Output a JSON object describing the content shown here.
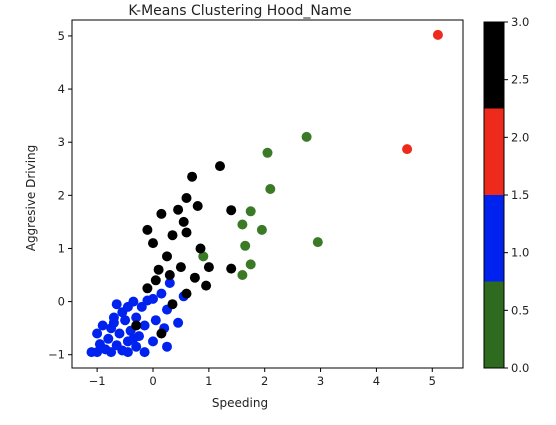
{
  "chart_data": {
    "type": "scatter",
    "title": "K-Means Clustering Hood_Name",
    "xlabel": "Speeding",
    "ylabel": "Aggresive Driving",
    "xlim": [
      -1.45,
      5.55
    ],
    "ylim": [
      -1.25,
      5.3
    ],
    "xticks": [
      -1,
      0,
      1,
      2,
      3,
      4,
      5
    ],
    "yticks": [
      -1,
      0,
      1,
      2,
      3,
      4,
      5
    ],
    "grid": false,
    "colorbar": {
      "min": 0.0,
      "max": 3.0,
      "ticks": [
        "0.0",
        "0.5",
        "1.0",
        "1.5",
        "2.0",
        "2.5",
        "3.0"
      ],
      "bands": [
        {
          "from": 0.0,
          "to": 0.75,
          "color": "#2e6b1e"
        },
        {
          "from": 0.75,
          "to": 1.5,
          "color": "#0022ee"
        },
        {
          "from": 1.5,
          "to": 2.25,
          "color": "#ee2a1c"
        },
        {
          "from": 2.25,
          "to": 3.0,
          "color": "#000000"
        }
      ]
    },
    "series": [
      {
        "cluster": 0,
        "color": "#3a7a26",
        "points": [
          [
            2.75,
            3.1
          ],
          [
            2.05,
            2.8
          ],
          [
            2.1,
            2.12
          ],
          [
            1.75,
            1.7
          ],
          [
            1.6,
            1.45
          ],
          [
            1.95,
            1.35
          ],
          [
            2.95,
            1.12
          ],
          [
            1.65,
            1.05
          ],
          [
            0.9,
            0.85
          ],
          [
            1.75,
            0.7
          ],
          [
            1.6,
            0.5
          ]
        ]
      },
      {
        "cluster": 1,
        "color": "#0022ee",
        "points": [
          [
            0.3,
            0.35
          ],
          [
            0.15,
            0.15
          ],
          [
            0.55,
            0.1
          ],
          [
            0.0,
            0.05
          ],
          [
            -0.35,
            0.0
          ],
          [
            -0.1,
            0.02
          ],
          [
            -0.65,
            -0.05
          ],
          [
            -0.45,
            -0.1
          ],
          [
            -0.2,
            -0.1
          ],
          [
            0.25,
            -0.15
          ],
          [
            -0.55,
            -0.2
          ],
          [
            -0.3,
            -0.3
          ],
          [
            0.05,
            -0.35
          ],
          [
            -0.7,
            -0.3
          ],
          [
            -0.9,
            -0.45
          ],
          [
            -0.5,
            -0.35
          ],
          [
            -0.15,
            -0.45
          ],
          [
            0.45,
            -0.4
          ],
          [
            -0.75,
            -0.5
          ],
          [
            -0.4,
            -0.55
          ],
          [
            -1.0,
            -0.6
          ],
          [
            -0.6,
            -0.6
          ],
          [
            -0.25,
            -0.65
          ],
          [
            0.2,
            -0.5
          ],
          [
            -0.8,
            -0.7
          ],
          [
            -0.45,
            -0.75
          ],
          [
            -0.95,
            -0.8
          ],
          [
            -0.65,
            -0.82
          ],
          [
            -0.3,
            -0.85
          ],
          [
            0.0,
            -0.75
          ],
          [
            -0.85,
            -0.9
          ],
          [
            -0.55,
            -0.92
          ],
          [
            -1.1,
            -0.95
          ],
          [
            -1.0,
            -0.95
          ],
          [
            -0.75,
            -0.95
          ],
          [
            -0.45,
            -0.95
          ],
          [
            -0.15,
            -0.95
          ],
          [
            0.25,
            -0.85
          ],
          [
            -0.7,
            -0.4
          ],
          [
            -0.35,
            -0.7
          ]
        ]
      },
      {
        "cluster": 2,
        "color": "#ee2a1c",
        "points": [
          [
            5.1,
            5.02
          ],
          [
            4.55,
            2.87
          ]
        ]
      },
      {
        "cluster": 3,
        "color": "#000000",
        "points": [
          [
            1.2,
            2.55
          ],
          [
            0.7,
            2.35
          ],
          [
            0.6,
            1.95
          ],
          [
            0.45,
            1.73
          ],
          [
            0.8,
            1.8
          ],
          [
            0.15,
            1.65
          ],
          [
            1.4,
            1.72
          ],
          [
            -0.1,
            1.35
          ],
          [
            0.55,
            1.5
          ],
          [
            0.35,
            1.25
          ],
          [
            0.6,
            1.3
          ],
          [
            0.0,
            1.1
          ],
          [
            0.85,
            1.0
          ],
          [
            0.25,
            0.85
          ],
          [
            0.1,
            0.6
          ],
          [
            0.5,
            0.65
          ],
          [
            1.0,
            0.65
          ],
          [
            1.4,
            0.62
          ],
          [
            0.3,
            0.5
          ],
          [
            0.05,
            0.4
          ],
          [
            0.75,
            0.45
          ],
          [
            0.95,
            0.3
          ],
          [
            -0.1,
            0.25
          ],
          [
            0.6,
            0.15
          ],
          [
            0.35,
            -0.05
          ],
          [
            -0.3,
            -0.45
          ],
          [
            0.15,
            -0.6
          ]
        ]
      }
    ]
  }
}
